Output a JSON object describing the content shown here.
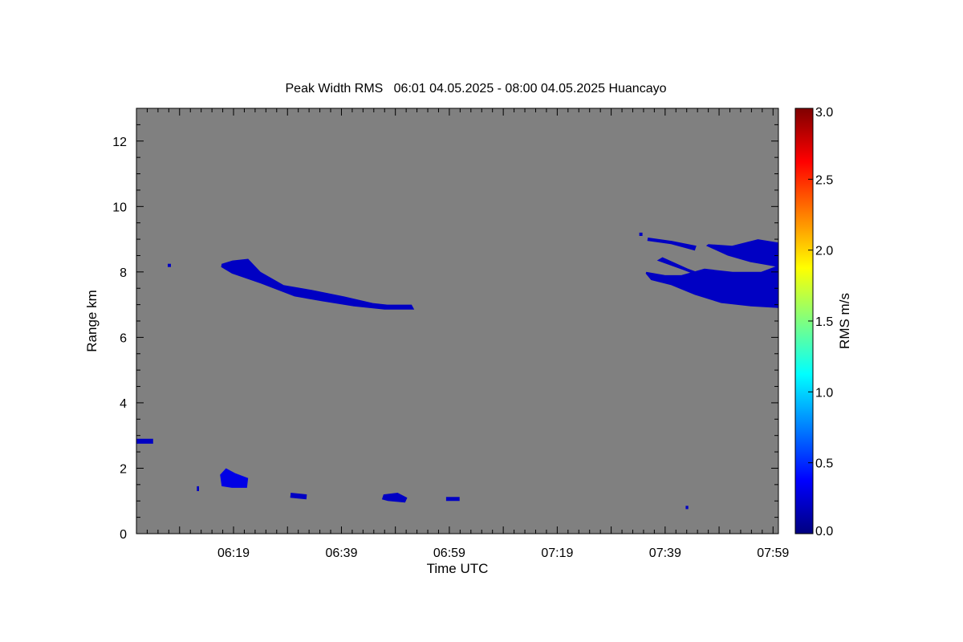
{
  "chart_data": {
    "type": "heatmap",
    "title": "Peak Width RMS   06:01 04.05.2025 - 08:00 04.05.2025 Huancayo",
    "xlabel": "Time UTC",
    "ylabel": "Range km",
    "x_unit": "minutes after 06:01 UTC",
    "xlim": [
      0,
      119
    ],
    "ylim": [
      0,
      13
    ],
    "x_ticks": [
      {
        "value": 18,
        "label": "06:19"
      },
      {
        "value": 38,
        "label": "06:39"
      },
      {
        "value": 58,
        "label": "06:59"
      },
      {
        "value": 78,
        "label": "07:19"
      },
      {
        "value": 98,
        "label": "07:39"
      },
      {
        "value": 118,
        "label": "07:59"
      }
    ],
    "y_ticks": [
      0,
      2,
      4,
      6,
      8,
      10,
      12
    ],
    "background_color": "#808080",
    "colorbar": {
      "label": "RMS m/s",
      "range": [
        0.0,
        3.0
      ],
      "ticks": [
        "0.0",
        "0.5",
        "1.0",
        "1.5",
        "2.0",
        "2.5",
        "3.0"
      ],
      "colormap": "jet"
    },
    "features": [
      {
        "name": "upper-layer-a",
        "value": 0.2,
        "pts": [
          [
            15.8,
            8.25
          ],
          [
            17.8,
            8.35
          ],
          [
            20.7,
            8.4
          ],
          [
            23,
            8.0
          ],
          [
            27.3,
            7.6
          ],
          [
            32.5,
            7.45
          ],
          [
            38.5,
            7.25
          ],
          [
            43.8,
            7.05
          ],
          [
            46.5,
            7.0
          ],
          [
            51,
            7.0
          ],
          [
            51.5,
            6.85
          ],
          [
            46,
            6.85
          ],
          [
            40.3,
            6.95
          ],
          [
            34.5,
            7.1
          ],
          [
            29.3,
            7.25
          ],
          [
            23,
            7.65
          ],
          [
            17.7,
            7.95
          ],
          [
            15.7,
            8.15
          ]
        ]
      },
      {
        "name": "upper-layer-b-top",
        "value": 0.2,
        "pts": [
          [
            106,
            8.85
          ],
          [
            110.4,
            8.8
          ],
          [
            115.2,
            9.0
          ],
          [
            119,
            8.9
          ],
          [
            119,
            8.15
          ],
          [
            113.8,
            8.3
          ],
          [
            109.6,
            8.5
          ],
          [
            105.6,
            8.8
          ]
        ]
      },
      {
        "name": "upper-layer-b-main",
        "value": 0.2,
        "pts": [
          [
            94.5,
            8.0
          ],
          [
            98,
            7.9
          ],
          [
            101,
            7.9
          ],
          [
            105.3,
            8.1
          ],
          [
            110.5,
            8.0
          ],
          [
            115.8,
            8.0
          ],
          [
            119,
            8.2
          ],
          [
            119,
            6.9
          ],
          [
            113.9,
            6.95
          ],
          [
            108.4,
            7.05
          ],
          [
            103.5,
            7.3
          ],
          [
            99.1,
            7.6
          ],
          [
            95.4,
            7.75
          ],
          [
            94.4,
            7.95
          ]
        ]
      },
      {
        "name": "upper-streak-1",
        "value": 0.2,
        "pts": [
          [
            96.5,
            8.35
          ],
          [
            101.5,
            8.05
          ],
          [
            105.4,
            7.8
          ],
          [
            106.4,
            7.85
          ],
          [
            102.2,
            8.1
          ],
          [
            97.5,
            8.45
          ]
        ]
      },
      {
        "name": "upper-streak-2",
        "value": 0.2,
        "pts": [
          [
            94.8,
            9.05
          ],
          [
            99.2,
            8.95
          ],
          [
            103.8,
            8.8
          ],
          [
            103.5,
            8.65
          ],
          [
            99.1,
            8.85
          ],
          [
            94.7,
            8.95
          ]
        ]
      },
      {
        "name": "upper-speck-1",
        "value": 0.2,
        "pts": [
          [
            93.2,
            9.2
          ],
          [
            93.8,
            9.2
          ],
          [
            93.8,
            9.1
          ],
          [
            93.2,
            9.1
          ]
        ]
      },
      {
        "name": "upper-speck-2",
        "value": 0.2,
        "pts": [
          [
            5.8,
            8.25
          ],
          [
            6.4,
            8.25
          ],
          [
            6.4,
            8.15
          ],
          [
            5.8,
            8.15
          ]
        ]
      },
      {
        "name": "lower-patch-1",
        "value": 0.3,
        "pts": [
          [
            15.5,
            1.8
          ],
          [
            16.6,
            2.0
          ],
          [
            18.3,
            1.85
          ],
          [
            20.7,
            1.7
          ],
          [
            20.5,
            1.4
          ],
          [
            17.7,
            1.4
          ],
          [
            15.8,
            1.45
          ]
        ]
      },
      {
        "name": "lower-patch-2",
        "value": 0.2,
        "pts": [
          [
            0,
            2.9
          ],
          [
            3.1,
            2.9
          ],
          [
            3.1,
            2.75
          ],
          [
            0,
            2.75
          ]
        ]
      },
      {
        "name": "lower-patch-3",
        "value": 0.2,
        "pts": [
          [
            28.6,
            1.25
          ],
          [
            31.6,
            1.2
          ],
          [
            31.5,
            1.05
          ],
          [
            28.5,
            1.1
          ]
        ]
      },
      {
        "name": "lower-patch-4",
        "value": 0.2,
        "pts": [
          [
            45.8,
            1.2
          ],
          [
            48.4,
            1.25
          ],
          [
            50.2,
            1.1
          ],
          [
            49.8,
            0.95
          ],
          [
            46.6,
            1.0
          ],
          [
            45.5,
            1.05
          ]
        ]
      },
      {
        "name": "lower-patch-5",
        "value": 0.2,
        "pts": [
          [
            57.4,
            1.12
          ],
          [
            59.9,
            1.12
          ],
          [
            59.9,
            1.0
          ],
          [
            57.4,
            1.0
          ]
        ]
      },
      {
        "name": "lower-speck-1",
        "value": 0.2,
        "pts": [
          [
            11.2,
            1.45
          ],
          [
            11.6,
            1.45
          ],
          [
            11.6,
            1.3
          ],
          [
            11.2,
            1.3
          ]
        ]
      },
      {
        "name": "lower-speck-2",
        "value": 0.2,
        "pts": [
          [
            101.8,
            0.85
          ],
          [
            102.3,
            0.85
          ],
          [
            102.3,
            0.75
          ],
          [
            101.8,
            0.75
          ]
        ]
      }
    ]
  }
}
